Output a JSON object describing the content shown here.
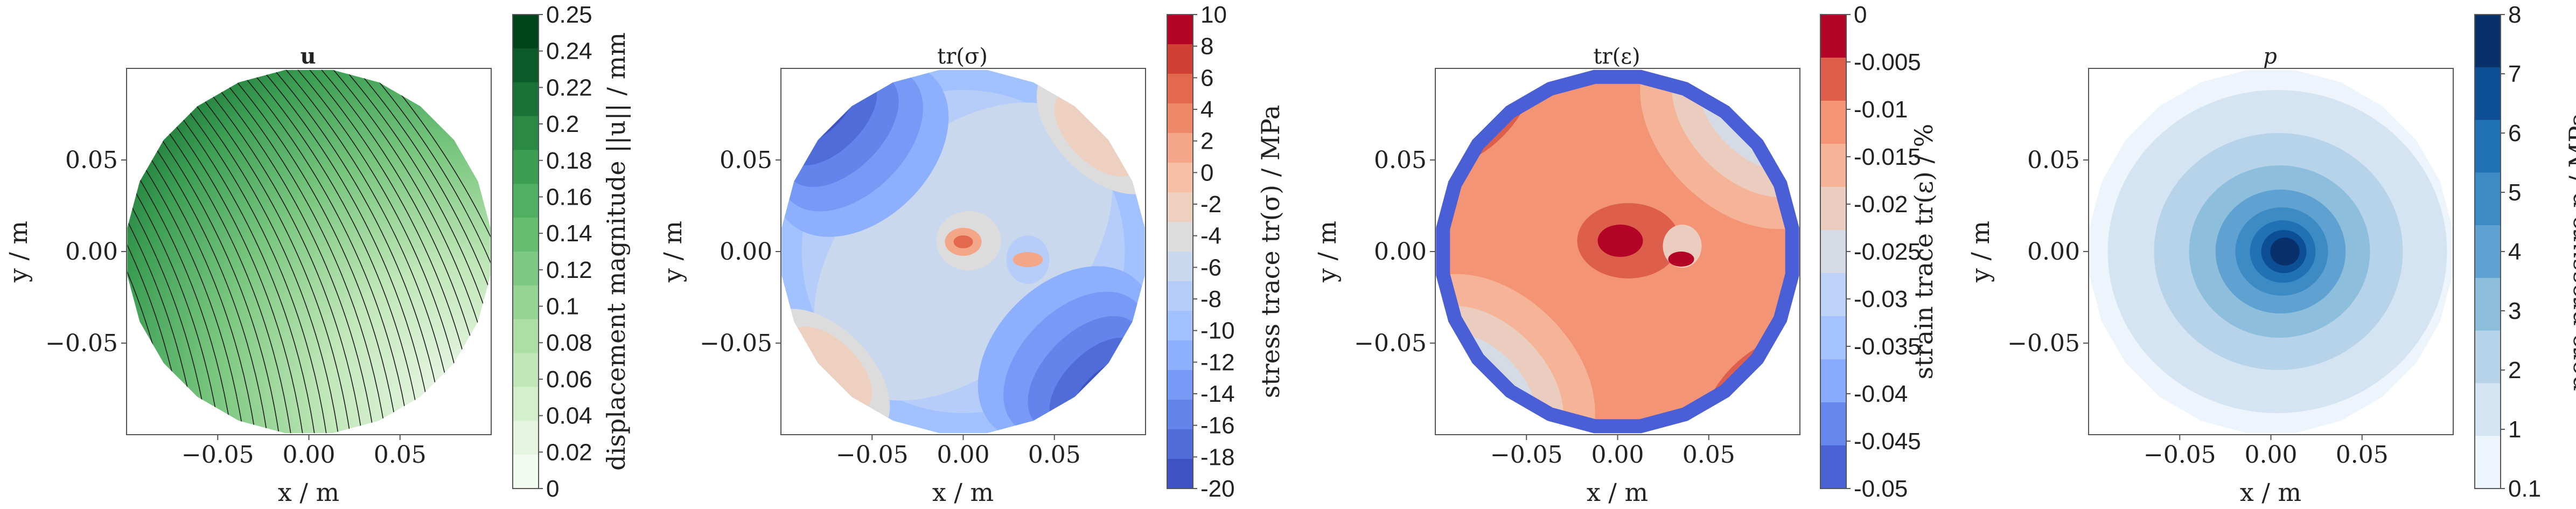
{
  "chart_data": [
    {
      "type": "heatmap",
      "title": "u",
      "xlabel": "x / m",
      "ylabel": "y / m",
      "xticks": [
        "−0.05",
        "0.00",
        "0.05"
      ],
      "yticks": [
        "0.05",
        "0.00",
        "−0.05"
      ],
      "xlim": [
        -0.1,
        0.1
      ],
      "ylim": [
        -0.1,
        0.1
      ],
      "colormap": "Greens",
      "overlay": "streamlines",
      "colorbar": {
        "label": "displacement magnitude ||u|| / mm",
        "min": 0,
        "max": 0.25,
        "tick_labels": [
          "0.25",
          "0.24",
          "0.22",
          "0.2",
          "0.18",
          "0.16",
          "0.14",
          "0.12",
          "0.1",
          "0.08",
          "0.06",
          "0.04",
          "0.02",
          "0"
        ],
        "colors": [
          "#00441b",
          "#0b5a28",
          "#1a7336",
          "#2a8a44",
          "#3b9e53",
          "#50b062",
          "#66be71",
          "#7ec982",
          "#96d494",
          "#acdea6",
          "#c1e7b9",
          "#d4efcb",
          "#e5f5df",
          "#f3faf0"
        ]
      }
    },
    {
      "type": "heatmap",
      "title": "tr(σ)",
      "xlabel": "x / m",
      "ylabel": "y / m",
      "xticks": [
        "−0.05",
        "0.00",
        "0.05"
      ],
      "yticks": [
        "0.05",
        "0.00",
        "−0.05"
      ],
      "xlim": [
        -0.1,
        0.1
      ],
      "ylim": [
        -0.1,
        0.1
      ],
      "colormap": "coolwarm",
      "colorbar": {
        "label": "stress trace tr(σ) / MPa",
        "min": -20,
        "max": 10,
        "tick_labels": [
          "10",
          "8",
          "6",
          "4",
          "2",
          "0",
          "-2",
          "-4",
          "-6",
          "-8",
          "-10",
          "-12",
          "-14",
          "-16",
          "-18",
          "-20"
        ],
        "colors": [
          "#b40426",
          "#d04035",
          "#e2694e",
          "#ee8868",
          "#f4a688",
          "#f6bfa6",
          "#eed0c0",
          "#dddcdc",
          "#cad8ee",
          "#b6cdfa",
          "#a2c1ff",
          "#8db0fe",
          "#779af7",
          "#6384eb",
          "#506cd9",
          "#3f52c4"
        ]
      }
    },
    {
      "type": "heatmap",
      "title": "tr(ε)",
      "xlabel": "x / m",
      "ylabel": "y / m",
      "xticks": [
        "−0.05",
        "0.00",
        "0.05"
      ],
      "yticks": [
        "0.05",
        "0.00",
        "−0.05"
      ],
      "xlim": [
        -0.1,
        0.1
      ],
      "ylim": [
        -0.1,
        0.1
      ],
      "colormap": "coolwarm",
      "colorbar": {
        "label": "strain trace tr(ε) / %",
        "min": -0.05,
        "max": 0,
        "tick_labels": [
          "0",
          "-0.005",
          "-0.01",
          "-0.015",
          "-0.02",
          "-0.025",
          "-0.03",
          "-0.035",
          "-0.04",
          "-0.045",
          "-0.05"
        ],
        "colors": [
          "#b40426",
          "#dd5f4b",
          "#f39475",
          "#f5b497",
          "#ebcdbf",
          "#d5dbe5",
          "#bcd2f7",
          "#a3c2fe",
          "#88abfd",
          "#6688ee",
          "#4961d2"
        ]
      }
    },
    {
      "type": "heatmap",
      "title": "p",
      "xlabel": "x / m",
      "ylabel": "y / m",
      "xticks": [
        "−0.05",
        "0.00",
        "0.05"
      ],
      "yticks": [
        "0.05",
        "0.00",
        "−0.05"
      ],
      "xlim": [
        -0.1,
        0.1
      ],
      "ylim": [
        -0.1,
        0.1
      ],
      "colormap": "Blues",
      "colorbar": {
        "label": "pore pressure p / MPa",
        "min": 0.1,
        "max": 8,
        "tick_labels": [
          "8",
          "7",
          "6",
          "5",
          "4",
          "3",
          "2",
          "1",
          "0.1"
        ],
        "colors": [
          "#08306b",
          "#0d4f95",
          "#2171b5",
          "#3d8bc4",
          "#5fa1d0",
          "#8dbfdd",
          "#b6d3ea",
          "#d5e4f3",
          "#edf4fb"
        ]
      }
    }
  ]
}
